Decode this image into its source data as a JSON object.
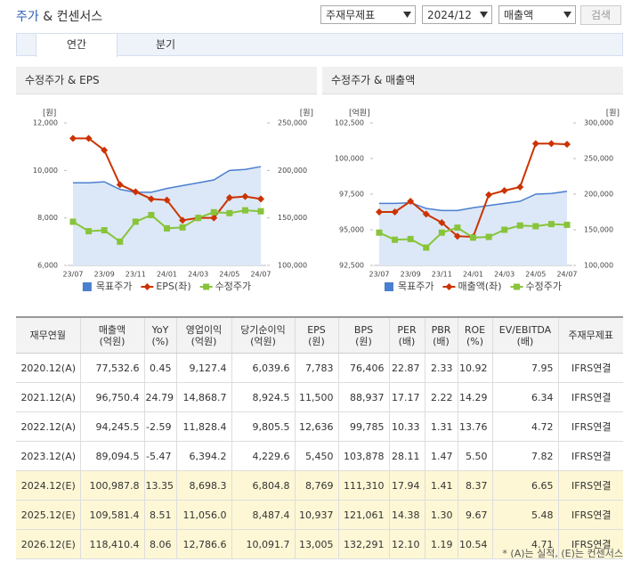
{
  "header": {
    "title_main": "주가",
    "title_rest": "& 컨센서스",
    "selects": [
      "주재무제표",
      "2024/12",
      "매출액"
    ],
    "button": "검색"
  },
  "tabs": [
    "연간",
    "분기"
  ],
  "chart_data": [
    {
      "type": "combo",
      "title": "수정주가 & EPS",
      "ylabel": "[원]",
      "y2label": "[원]",
      "categories": [
        "23/07",
        null,
        "23/09",
        null,
        "23/11",
        null,
        "24/01",
        null,
        "24/03",
        null,
        "24/05",
        null,
        "24/07"
      ],
      "ylim": [
        6000,
        12000
      ],
      "yticks": [
        {
          "value": 6000,
          "label": "6,000"
        },
        {
          "value": 8000,
          "label": "8,000"
        },
        {
          "value": 10000,
          "label": "10,000"
        },
        {
          "value": 12000,
          "label": "12,000"
        }
      ],
      "y2lim": [
        100000,
        250000
      ],
      "y2ticks": [
        {
          "value": 100000,
          "label": "100,000"
        },
        {
          "value": 150000,
          "label": "150,000"
        },
        {
          "value": 200000,
          "label": "200,000"
        },
        {
          "value": 250000,
          "label": "250,000"
        }
      ],
      "series": [
        {
          "name": "목표주가",
          "style": "area",
          "axis": "y2",
          "color": "#4a7fd0",
          "fill": "#dce8f7",
          "values": [
            187000,
            187000,
            188000,
            180000,
            177000,
            177000,
            181000,
            184000,
            187000,
            190000,
            200000,
            201000,
            204000
          ]
        },
        {
          "name": "EPS(좌)",
          "style": "line",
          "marker": "diamond",
          "axis": "y",
          "color": "#cc3300",
          "values": [
            11350,
            11350,
            10850,
            9400,
            9100,
            8800,
            8750,
            7900,
            8000,
            8000,
            8850,
            8900,
            8800
          ]
        },
        {
          "name": "수정주가",
          "style": "line",
          "marker": "square",
          "axis": "y2",
          "color": "#88c43a",
          "values": [
            146000,
            136000,
            137000,
            125000,
            146000,
            153000,
            139000,
            140000,
            150000,
            156000,
            155000,
            158000,
            157000
          ]
        }
      ]
    },
    {
      "type": "combo",
      "title": "수정주가 & 매출액",
      "ylabel": "[억원]",
      "y2label": "[원]",
      "categories": [
        "23/07",
        null,
        "23/09",
        null,
        "23/11",
        null,
        "24/01",
        null,
        "24/03",
        null,
        "24/05",
        null,
        "24/07"
      ],
      "ylim": [
        92500,
        102500
      ],
      "yticks": [
        {
          "value": 92500,
          "label": "92,500"
        },
        {
          "value": 95000,
          "label": "95,000"
        },
        {
          "value": 97500,
          "label": "97,500"
        },
        {
          "value": 100000,
          "label": "100,000"
        },
        {
          "value": 102500,
          "label": "102,500"
        }
      ],
      "y2lim": [
        100000,
        300000
      ],
      "y2ticks": [
        {
          "value": 100000,
          "label": "100,000"
        },
        {
          "value": 150000,
          "label": "150,000"
        },
        {
          "value": 200000,
          "label": "200,000"
        },
        {
          "value": 250000,
          "label": "250,000"
        },
        {
          "value": 300000,
          "label": "300,000"
        }
      ],
      "series": [
        {
          "name": "목표주가",
          "style": "area",
          "axis": "y2",
          "color": "#4a7fd0",
          "fill": "#dce8f7",
          "values": [
            187000,
            187000,
            188000,
            180000,
            177000,
            177000,
            181000,
            184000,
            187000,
            190000,
            200000,
            201000,
            204000
          ]
        },
        {
          "name": "매출액(좌)",
          "style": "line",
          "marker": "diamond",
          "axis": "y",
          "color": "#cc3300",
          "values": [
            96250,
            96250,
            97000,
            96100,
            95500,
            94550,
            94500,
            97450,
            97750,
            98000,
            101050,
            101050,
            101000
          ]
        },
        {
          "name": "수정주가",
          "style": "line",
          "marker": "square",
          "axis": "y2",
          "color": "#88c43a",
          "values": [
            146000,
            136000,
            137000,
            125000,
            146000,
            153000,
            139000,
            140000,
            150000,
            156000,
            155000,
            158000,
            157000
          ]
        }
      ]
    }
  ],
  "table": {
    "header": [
      [
        "재무연월"
      ],
      [
        "매출액",
        "(억원)"
      ],
      [
        "YoY",
        "(%)"
      ],
      [
        "영업이익",
        "(억원)"
      ],
      [
        "당기순이익",
        "(억원)"
      ],
      [
        "EPS",
        "(원)"
      ],
      [
        "BPS",
        "(원)"
      ],
      [
        "PER",
        "(배)"
      ],
      [
        "PBR",
        "(배)"
      ],
      [
        "ROE",
        "(%)"
      ],
      [
        "EV/EBITDA",
        "(배)"
      ],
      [
        "주재무제표"
      ]
    ],
    "rows": [
      [
        "2020.12(A)",
        "77,532.6",
        "0.45",
        "9,127.4",
        "6,039.6",
        "7,783",
        "76,406",
        "22.87",
        "2.33",
        "10.92",
        "7.95",
        "IFRS연결"
      ],
      [
        "2021.12(A)",
        "96,750.4",
        "24.79",
        "14,868.7",
        "8,924.5",
        "11,500",
        "88,937",
        "17.17",
        "2.22",
        "14.29",
        "6.34",
        "IFRS연결"
      ],
      [
        "2022.12(A)",
        "94,245.5",
        "-2.59",
        "11,828.4",
        "9,805.5",
        "12,636",
        "99,785",
        "10.33",
        "1.31",
        "13.76",
        "4.72",
        "IFRS연결"
      ],
      [
        "2023.12(A)",
        "89,094.5",
        "-5.47",
        "6,394.2",
        "4,229.6",
        "5,450",
        "103,878",
        "28.11",
        "1.47",
        "5.50",
        "7.82",
        "IFRS연결"
      ],
      [
        "2024.12(E)",
        "100,987.8",
        "13.35",
        "8,698.3",
        "6,804.8",
        "8,769",
        "111,310",
        "17.94",
        "1.41",
        "8.37",
        "6.65",
        "IFRS연결"
      ],
      [
        "2025.12(E)",
        "109,581.4",
        "8.51",
        "11,056.0",
        "8,487.4",
        "10,937",
        "121,061",
        "14.38",
        "1.30",
        "9.67",
        "5.48",
        "IFRS연결"
      ],
      [
        "2026.12(E)",
        "118,410.4",
        "8.06",
        "12,786.6",
        "10,091.7",
        "13,005",
        "132,291",
        "12.10",
        "1.19",
        "10.54",
        "4.71",
        "IFRS연결"
      ]
    ],
    "highlight_rows": [
      4,
      5,
      6
    ],
    "highlight_color": "#fdf7d5"
  },
  "footnote": "* (A)는 실적, (E)는 컨센서스"
}
